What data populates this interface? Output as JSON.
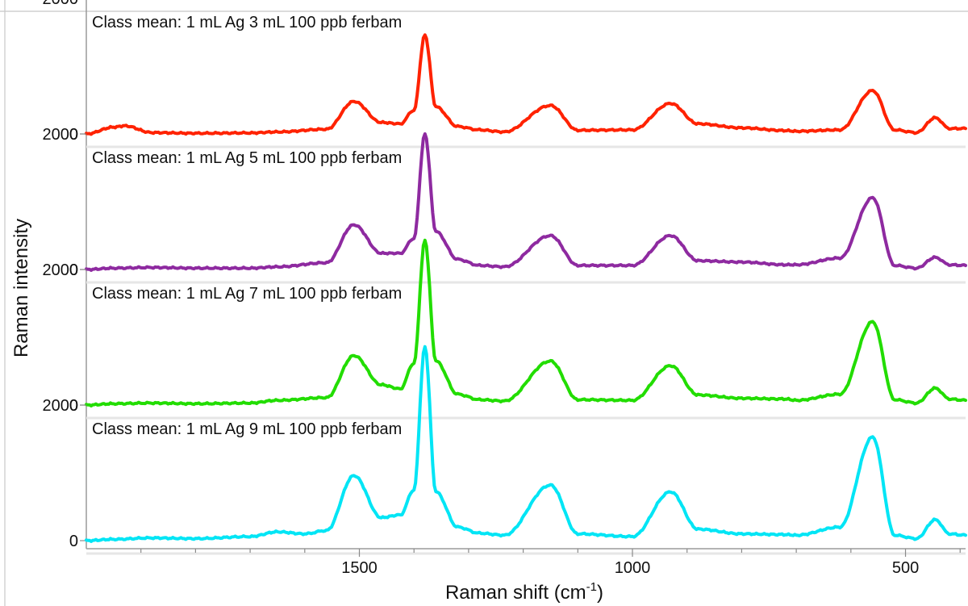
{
  "chart_data": {
    "type": "line",
    "xlabel": "Raman shift (cm",
    "xlabel_sup": "-1",
    "xlabel_end": ")",
    "ylabel": "Raman intensity",
    "x_reversed": true,
    "xlim": [
      2000,
      390
    ],
    "x_ticks": [
      1500,
      1000,
      500
    ],
    "x_tick_labels": [
      "1500",
      "1000",
      "500"
    ],
    "ylim": [
      0,
      2400
    ],
    "y_ticks": [
      0,
      2000
    ],
    "y_tick_labels": [
      "0",
      "2000"
    ],
    "grid": false,
    "panels": [
      {
        "title": "Class mean: 1 mL Ag 3 mL 100 ppb ferbam",
        "color": "#ff2200",
        "x": [
          2000,
          1950,
          1930,
          1880,
          1800,
          1700,
          1650,
          1560,
          1510,
          1460,
          1425,
          1400,
          1380,
          1360,
          1320,
          1280,
          1235,
          1150,
          1100,
          1000,
          930,
          880,
          800,
          720,
          700,
          620,
          560,
          520,
          480,
          445,
          420,
          390
        ],
        "y": [
          0,
          100,
          120,
          20,
          10,
          15,
          30,
          70,
          480,
          170,
          150,
          350,
          1460,
          400,
          110,
          60,
          30,
          420,
          55,
          60,
          450,
          150,
          90,
          50,
          40,
          60,
          640,
          60,
          20,
          240,
          80,
          80
        ]
      },
      {
        "title": "Class mean: 1 mL Ag 5 mL 100 ppb ferbam",
        "color": "#8e2aa0",
        "x": [
          2000,
          1950,
          1880,
          1800,
          1700,
          1650,
          1560,
          1510,
          1460,
          1425,
          1400,
          1380,
          1360,
          1320,
          1280,
          1235,
          1150,
          1100,
          1000,
          930,
          880,
          800,
          720,
          700,
          620,
          560,
          520,
          480,
          445,
          420,
          390
        ],
        "y": [
          0,
          20,
          30,
          20,
          20,
          40,
          100,
          660,
          240,
          240,
          460,
          2000,
          560,
          150,
          60,
          40,
          500,
          60,
          60,
          500,
          130,
          110,
          70,
          70,
          170,
          1060,
          60,
          20,
          180,
          70,
          60
        ]
      },
      {
        "title": "Class mean: 1 mL Ag 7 mL 100 ppb ferbam",
        "color": "#22dd00",
        "x": [
          2000,
          1950,
          1880,
          1800,
          1700,
          1650,
          1560,
          1510,
          1460,
          1425,
          1400,
          1380,
          1360,
          1320,
          1280,
          1235,
          1150,
          1100,
          1000,
          930,
          880,
          800,
          720,
          700,
          620,
          560,
          520,
          480,
          445,
          420,
          390
        ],
        "y": [
          0,
          20,
          30,
          20,
          30,
          70,
          110,
          730,
          300,
          240,
          620,
          2430,
          650,
          160,
          80,
          60,
          650,
          80,
          70,
          580,
          150,
          100,
          90,
          70,
          160,
          1230,
          80,
          30,
          250,
          90,
          70
        ]
      },
      {
        "title": "Class mean: 1 mL Ag 9 mL 100 ppb ferbam",
        "color": "#00e5f5",
        "x": [
          2000,
          1950,
          1880,
          1800,
          1700,
          1650,
          1600,
          1560,
          1510,
          1460,
          1425,
          1400,
          1380,
          1360,
          1320,
          1280,
          1235,
          1150,
          1100,
          1000,
          930,
          880,
          800,
          720,
          700,
          620,
          560,
          520,
          480,
          445,
          420,
          390
        ],
        "y": [
          0,
          20,
          40,
          30,
          60,
          130,
          100,
          150,
          960,
          340,
          380,
          750,
          2860,
          720,
          200,
          110,
          80,
          820,
          100,
          60,
          720,
          170,
          100,
          90,
          80,
          200,
          1530,
          80,
          30,
          310,
          100,
          80
        ]
      }
    ]
  }
}
